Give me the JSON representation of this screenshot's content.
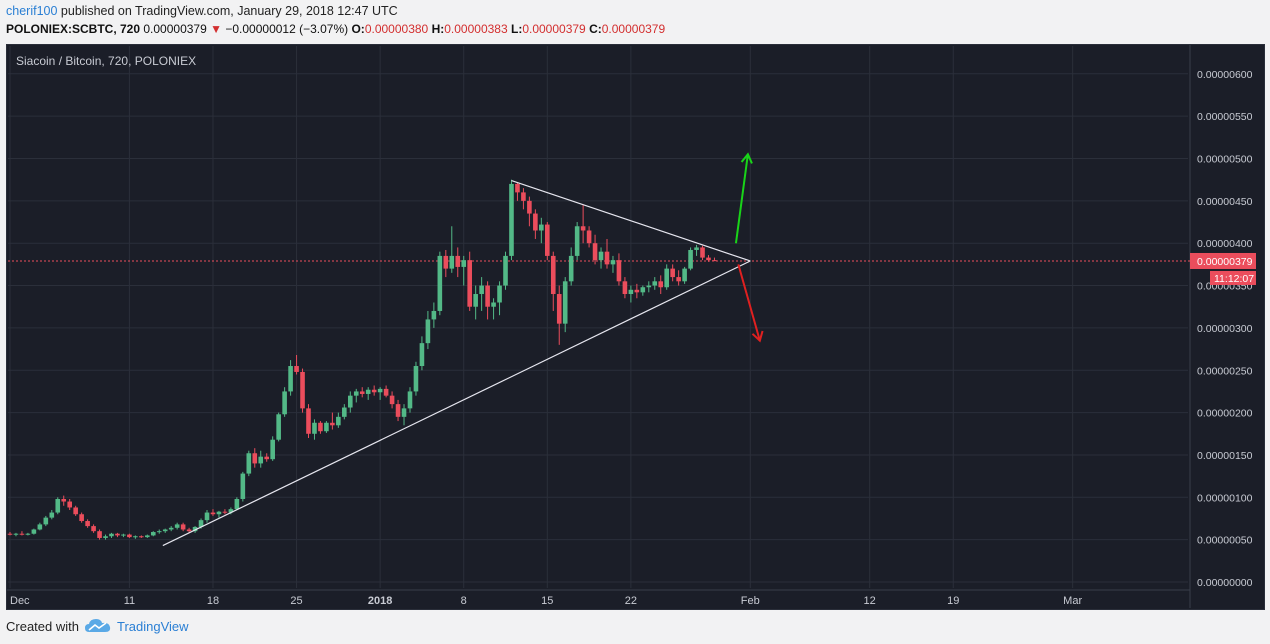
{
  "header": {
    "author": "cherif100",
    "published_text": "published on TradingView.com, January 29, 2018 12:47 UTC",
    "symbol_line": "POLONIEX:SCBTC, 720",
    "last_value": "0.00000379",
    "change_arrow": "▼",
    "change": "−0.00000012 (−3.07%)",
    "ohlc": [
      {
        "key": "O:",
        "value": "0.00000380"
      },
      {
        "key": "H:",
        "value": "0.00000383"
      },
      {
        "key": "L:",
        "value": "0.00000379"
      },
      {
        "key": "C:",
        "value": "0.00000379"
      }
    ]
  },
  "legend": "Siacoin / Bitcoin, 720, POLONIEX",
  "footer": {
    "created_with": "Created with",
    "brand": "TradingView",
    "logo_icon": "cloud-logo-icon"
  },
  "colors": {
    "background": "#1b1e28",
    "grid": "#2b2f3a",
    "up": "#53b987",
    "down": "#eb4d5c",
    "trendline": "#e6e6ef",
    "price_line": "#eb4d5c",
    "arrow_up": "#19d419",
    "arrow_down": "#e02020"
  },
  "chart_data": {
    "type": "candlestick",
    "title": "Siacoin / Bitcoin, 720, POLONIEX",
    "ylim": [
      0,
      6.2e-06
    ],
    "y_ticks": [
      "0.00000600",
      "0.00000550",
      "0.00000500",
      "0.00000450",
      "0.00000400",
      "0.00000350",
      "0.00000300",
      "0.00000250",
      "0.00000200",
      "0.00000150",
      "0.00000100",
      "0.00000050",
      "0.00000000"
    ],
    "y_tick_values": [
      6e-06,
      5.5e-06,
      5e-06,
      4.5e-06,
      4e-06,
      3.5e-06,
      3e-06,
      2.5e-06,
      2e-06,
      1.5e-06,
      1e-06,
      5e-07,
      0
    ],
    "x_labels": [
      "Dec",
      "11",
      "18",
      "25",
      "2018",
      "8",
      "15",
      "22",
      "Feb",
      "12",
      "19",
      "Mar"
    ],
    "x_label_days": [
      0,
      10,
      17,
      24,
      31,
      38,
      45,
      52,
      62,
      72,
      79,
      89
    ],
    "last_price_label": "0.00000379",
    "countdown_label": "11:12:07",
    "current_price": 3.79e-06,
    "candles_note": "12h candles; x in days since Dec 1 2017",
    "candles": [
      [
        0.0,
        0.57,
        0.59,
        0.55,
        0.56
      ],
      [
        0.5,
        0.56,
        0.58,
        0.54,
        0.57
      ],
      [
        1.0,
        0.57,
        0.6,
        0.55,
        0.56
      ],
      [
        1.5,
        0.56,
        0.58,
        0.55,
        0.57
      ],
      [
        2.0,
        0.57,
        0.63,
        0.56,
        0.62
      ],
      [
        2.5,
        0.62,
        0.7,
        0.61,
        0.68
      ],
      [
        3.0,
        0.68,
        0.78,
        0.66,
        0.76
      ],
      [
        3.5,
        0.76,
        0.85,
        0.74,
        0.82
      ],
      [
        4.0,
        0.82,
        1.0,
        0.8,
        0.98
      ],
      [
        4.5,
        0.98,
        1.02,
        0.9,
        0.95
      ],
      [
        5.0,
        0.95,
        0.98,
        0.85,
        0.88
      ],
      [
        5.5,
        0.88,
        0.9,
        0.78,
        0.8
      ],
      [
        6.0,
        0.8,
        0.82,
        0.7,
        0.72
      ],
      [
        6.5,
        0.72,
        0.74,
        0.64,
        0.66
      ],
      [
        7.0,
        0.66,
        0.68,
        0.58,
        0.6
      ],
      [
        7.5,
        0.6,
        0.62,
        0.5,
        0.52
      ],
      [
        8.0,
        0.52,
        0.56,
        0.5,
        0.54
      ],
      [
        8.5,
        0.54,
        0.58,
        0.52,
        0.57
      ],
      [
        9.0,
        0.57,
        0.58,
        0.53,
        0.55
      ],
      [
        9.5,
        0.55,
        0.57,
        0.53,
        0.56
      ],
      [
        10.0,
        0.56,
        0.57,
        0.52,
        0.53
      ],
      [
        10.5,
        0.53,
        0.55,
        0.51,
        0.54
      ],
      [
        11.0,
        0.54,
        0.55,
        0.52,
        0.53
      ],
      [
        11.5,
        0.53,
        0.56,
        0.52,
        0.55
      ],
      [
        12.0,
        0.55,
        0.6,
        0.54,
        0.59
      ],
      [
        12.5,
        0.59,
        0.62,
        0.57,
        0.6
      ],
      [
        13.0,
        0.6,
        0.63,
        0.58,
        0.62
      ],
      [
        13.5,
        0.62,
        0.66,
        0.6,
        0.64
      ],
      [
        14.0,
        0.64,
        0.7,
        0.62,
        0.68
      ],
      [
        14.5,
        0.68,
        0.7,
        0.6,
        0.62
      ],
      [
        15.0,
        0.62,
        0.64,
        0.58,
        0.6
      ],
      [
        15.5,
        0.6,
        0.66,
        0.58,
        0.65
      ],
      [
        16.0,
        0.65,
        0.75,
        0.63,
        0.73
      ],
      [
        16.5,
        0.73,
        0.85,
        0.7,
        0.82
      ],
      [
        17.0,
        0.82,
        0.86,
        0.78,
        0.8
      ],
      [
        17.5,
        0.8,
        0.84,
        0.76,
        0.83
      ],
      [
        18.0,
        0.83,
        0.86,
        0.8,
        0.82
      ],
      [
        18.5,
        0.82,
        0.88,
        0.8,
        0.86
      ],
      [
        19.0,
        0.86,
        1.0,
        0.85,
        0.98
      ],
      [
        19.5,
        0.98,
        1.3,
        0.95,
        1.28
      ],
      [
        20.0,
        1.28,
        1.55,
        1.25,
        1.52
      ],
      [
        20.5,
        1.52,
        1.58,
        1.35,
        1.4
      ],
      [
        21.0,
        1.4,
        1.55,
        1.35,
        1.48
      ],
      [
        21.5,
        1.48,
        1.52,
        1.42,
        1.45
      ],
      [
        22.0,
        1.45,
        1.72,
        1.43,
        1.68
      ],
      [
        22.5,
        1.68,
        2.0,
        1.66,
        1.98
      ],
      [
        23.0,
        1.98,
        2.3,
        1.95,
        2.25
      ],
      [
        23.5,
        2.25,
        2.62,
        2.2,
        2.55
      ],
      [
        24.0,
        2.55,
        2.68,
        2.45,
        2.48
      ],
      [
        24.5,
        2.48,
        2.52,
        2.0,
        2.05
      ],
      [
        25.0,
        2.05,
        2.1,
        1.7,
        1.75
      ],
      [
        25.5,
        1.75,
        1.92,
        1.68,
        1.88
      ],
      [
        26.0,
        1.88,
        1.9,
        1.75,
        1.78
      ],
      [
        26.5,
        1.78,
        1.9,
        1.76,
        1.88
      ],
      [
        27.0,
        1.88,
        2.0,
        1.8,
        1.85
      ],
      [
        27.5,
        1.85,
        2.0,
        1.82,
        1.95
      ],
      [
        28.0,
        1.95,
        2.1,
        1.92,
        2.06
      ],
      [
        28.5,
        2.06,
        2.25,
        2.0,
        2.2
      ],
      [
        29.0,
        2.2,
        2.28,
        2.12,
        2.25
      ],
      [
        29.5,
        2.25,
        2.3,
        2.18,
        2.22
      ],
      [
        30.0,
        2.22,
        2.3,
        2.15,
        2.27
      ],
      [
        30.5,
        2.27,
        2.32,
        2.2,
        2.24
      ],
      [
        31.0,
        2.24,
        2.3,
        2.15,
        2.28
      ],
      [
        31.5,
        2.28,
        2.32,
        2.18,
        2.2
      ],
      [
        32.0,
        2.2,
        2.25,
        2.05,
        2.1
      ],
      [
        32.5,
        2.1,
        2.15,
        1.9,
        1.95
      ],
      [
        33.0,
        1.95,
        2.1,
        1.85,
        2.05
      ],
      [
        33.5,
        2.05,
        2.3,
        2.0,
        2.25
      ],
      [
        34.0,
        2.25,
        2.6,
        2.2,
        2.55
      ],
      [
        34.5,
        2.55,
        2.9,
        2.5,
        2.82
      ],
      [
        35.0,
        2.82,
        3.2,
        2.75,
        3.1
      ],
      [
        35.5,
        3.1,
        3.3,
        3.0,
        3.2
      ],
      [
        36.0,
        3.2,
        3.9,
        3.15,
        3.85
      ],
      [
        36.5,
        3.85,
        3.92,
        3.6,
        3.7
      ],
      [
        37.0,
        3.7,
        4.2,
        3.65,
        3.85
      ],
      [
        37.5,
        3.85,
        3.95,
        3.6,
        3.72
      ],
      [
        38.0,
        3.72,
        3.85,
        3.5,
        3.8
      ],
      [
        38.5,
        3.8,
        3.9,
        3.2,
        3.25
      ],
      [
        39.0,
        3.25,
        3.5,
        3.1,
        3.4
      ],
      [
        39.5,
        3.4,
        3.6,
        3.2,
        3.5
      ],
      [
        40.0,
        3.5,
        3.55,
        3.1,
        3.25
      ],
      [
        40.5,
        3.25,
        3.35,
        3.1,
        3.3
      ],
      [
        41.0,
        3.3,
        3.55,
        3.15,
        3.5
      ],
      [
        41.5,
        3.5,
        3.9,
        3.45,
        3.85
      ],
      [
        42.0,
        3.85,
        4.75,
        3.8,
        4.7
      ],
      [
        42.5,
        4.7,
        4.72,
        4.5,
        4.6
      ],
      [
        43.0,
        4.6,
        4.65,
        4.4,
        4.5
      ],
      [
        43.5,
        4.5,
        4.55,
        4.2,
        4.35
      ],
      [
        44.0,
        4.35,
        4.4,
        4.05,
        4.15
      ],
      [
        44.5,
        4.15,
        4.3,
        4.0,
        4.22
      ],
      [
        45.0,
        4.22,
        4.25,
        3.8,
        3.85
      ],
      [
        45.5,
        3.85,
        3.9,
        3.2,
        3.4
      ],
      [
        46.0,
        3.4,
        3.5,
        2.8,
        3.05
      ],
      [
        46.5,
        3.05,
        3.6,
        2.95,
        3.55
      ],
      [
        47.0,
        3.55,
        3.95,
        3.5,
        3.85
      ],
      [
        47.5,
        3.85,
        4.25,
        3.8,
        4.2
      ],
      [
        48.0,
        4.2,
        4.45,
        4.0,
        4.15
      ],
      [
        48.5,
        4.15,
        4.2,
        3.95,
        4.0
      ],
      [
        49.0,
        4.0,
        4.1,
        3.75,
        3.8
      ],
      [
        49.5,
        3.8,
        3.95,
        3.7,
        3.9
      ],
      [
        50.0,
        3.9,
        4.05,
        3.7,
        3.75
      ],
      [
        50.5,
        3.75,
        3.85,
        3.65,
        3.8
      ],
      [
        51.0,
        3.8,
        3.88,
        3.5,
        3.55
      ],
      [
        51.5,
        3.55,
        3.6,
        3.35,
        3.4
      ],
      [
        52.0,
        3.4,
        3.5,
        3.3,
        3.45
      ],
      [
        52.5,
        3.45,
        3.52,
        3.35,
        3.42
      ],
      [
        53.0,
        3.42,
        3.5,
        3.38,
        3.48
      ],
      [
        53.5,
        3.48,
        3.55,
        3.42,
        3.5
      ],
      [
        54.0,
        3.5,
        3.6,
        3.45,
        3.55
      ],
      [
        54.5,
        3.55,
        3.62,
        3.4,
        3.48
      ],
      [
        55.0,
        3.48,
        3.75,
        3.45,
        3.7
      ],
      [
        55.5,
        3.7,
        3.75,
        3.55,
        3.6
      ],
      [
        56.0,
        3.6,
        3.68,
        3.5,
        3.55
      ],
      [
        56.5,
        3.55,
        3.72,
        3.52,
        3.7
      ],
      [
        57.0,
        3.7,
        3.95,
        3.68,
        3.92
      ],
      [
        57.5,
        3.92,
        3.98,
        3.85,
        3.95
      ],
      [
        58.0,
        3.95,
        3.97,
        3.8,
        3.83
      ],
      [
        58.5,
        3.83,
        3.86,
        3.78,
        3.8
      ],
      [
        59.0,
        3.8,
        3.83,
        3.79,
        3.79
      ]
    ],
    "annotations": {
      "upper_trendline": {
        "from": [
          42.0,
          4.74
        ],
        "to": [
          62.0,
          3.79
        ]
      },
      "lower_trendline": {
        "from": [
          12.8,
          0.43
        ],
        "to": [
          62.0,
          3.79
        ]
      },
      "arrow_up": {
        "from": [
          60.8,
          4.0
        ],
        "to": [
          61.8,
          5.05
        ]
      },
      "arrow_down": {
        "from": [
          61.0,
          3.75
        ],
        "to": [
          62.8,
          2.85
        ]
      }
    }
  }
}
